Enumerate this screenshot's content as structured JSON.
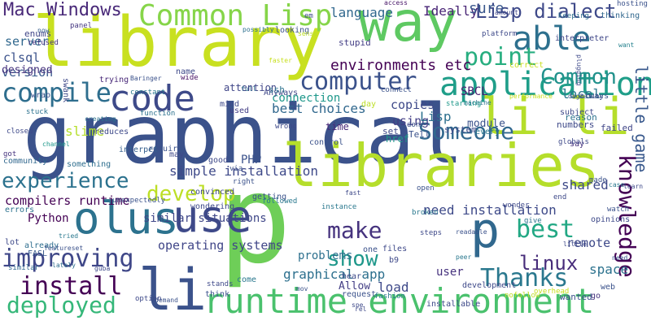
{
  "words": [
    {
      "text": "p",
      "color": "#6ece58"
    },
    {
      "text": "graphical",
      "color": "#3b528b"
    },
    {
      "text": "library",
      "color": "#c8e020"
    },
    {
      "text": "li li",
      "color": "#b5de2b"
    },
    {
      "text": "libraries",
      "color": "#b5de2b"
    },
    {
      "text": "way",
      "color": "#5ec962"
    },
    {
      "text": "olus",
      "color": "#2c728e"
    },
    {
      "text": "use",
      "color": "#3e4989"
    },
    {
      "text": "p",
      "color": "#31688e"
    },
    {
      "text": "runtime environment",
      "color": "#4ac16d"
    },
    {
      "text": "li",
      "color": "#3b528b"
    },
    {
      "text": "Common Lisp",
      "color": "#86d549"
    },
    {
      "text": "code",
      "color": "#3e4a89"
    },
    {
      "text": "application",
      "color": "#1f9e89"
    },
    {
      "text": "able",
      "color": "#2d708e"
    },
    {
      "text": "compile",
      "color": "#2e6e8e"
    },
    {
      "text": "Common",
      "color": "#21918c"
    },
    {
      "text": "point",
      "color": "#28ae80"
    },
    {
      "text": "computer",
      "color": "#3b528b"
    },
    {
      "text": "Someone",
      "color": "#31688e"
    },
    {
      "text": "develop",
      "color": "#bddf26"
    },
    {
      "text": "experience",
      "color": "#2c728e"
    },
    {
      "text": "improving",
      "color": "#3f4788"
    },
    {
      "text": "install",
      "color": "#440154"
    },
    {
      "text": "deployed",
      "color": "#35b779"
    },
    {
      "text": "make",
      "color": "#46337e"
    },
    {
      "text": "best",
      "color": "#22a884"
    },
    {
      "text": "linux",
      "color": "#472c7a"
    },
    {
      "text": "show",
      "color": "#1f988b"
    },
    {
      "text": "Thanks",
      "color": "#2a788e"
    },
    {
      "text": "knowledge",
      "color": "#440154"
    },
    {
      "text": "Lisp dialect",
      "color": "#3e4989"
    },
    {
      "text": "Mac Windows",
      "color": "#482878"
    },
    {
      "text": "environments etc",
      "color": "#440154"
    },
    {
      "text": "language",
      "color": "#31688e"
    },
    {
      "text": "Ideally",
      "color": "#482475"
    },
    {
      "text": "little game",
      "color": "#38588c"
    },
    {
      "text": "simple installation",
      "color": "#3e4989"
    },
    {
      "text": "need installation",
      "color": "#3e4a89"
    },
    {
      "text": "graphical app",
      "color": "#2d708e"
    },
    {
      "text": "operating systems",
      "color": "#404688"
    },
    {
      "text": "similar situations",
      "color": "#3f4788"
    },
    {
      "text": "best choices",
      "color": "#31688e"
    },
    {
      "text": "compilers runtime",
      "color": "#440154"
    },
    {
      "text": "Python",
      "color": "#440154"
    },
    {
      "text": "problems",
      "color": "#2d708e"
    },
    {
      "text": "remote",
      "color": "#3e4989"
    },
    {
      "text": "space",
      "color": "#2c728e"
    },
    {
      "text": "shared",
      "color": "#3e4a89"
    },
    {
      "text": "version",
      "color": "#38588c"
    },
    {
      "text": "server",
      "color": "#31688e"
    },
    {
      "text": "clsql",
      "color": "#3b528b"
    },
    {
      "text": "designed",
      "color": "#46337e"
    },
    {
      "text": "slime",
      "color": "#b5de2b"
    },
    {
      "text": "connection",
      "color": "#1f988b"
    },
    {
      "text": "copies",
      "color": "#3e4989"
    },
    {
      "text": "using",
      "color": "#433e85"
    },
    {
      "text": "SBCL",
      "color": "#481f70"
    },
    {
      "text": "Lisp",
      "color": "#2d708e"
    },
    {
      "text": "sure",
      "color": "#39568c"
    },
    {
      "text": "local",
      "color": "#2a788e"
    },
    {
      "text": "PHP",
      "color": "#3b528b"
    },
    {
      "text": "load",
      "color": "#3e4989"
    },
    {
      "text": "user",
      "color": "#46327e"
    },
    {
      "text": "Allow",
      "color": "#433e85"
    },
    {
      "text": "module",
      "color": "#3b528b"
    },
    {
      "text": "FASL",
      "color": "#38588c"
    },
    {
      "text": "enums",
      "color": "#404688"
    },
    {
      "text": "refused",
      "color": "#46337e"
    },
    {
      "text": "now",
      "color": "#355f8d"
    },
    {
      "text": "panel",
      "color": "#453781"
    },
    {
      "text": "possibly",
      "color": "#2d708e"
    },
    {
      "text": "looking",
      "color": "#3b528b"
    },
    {
      "text": "access",
      "color": "#481668"
    },
    {
      "text": "amount",
      "color": "#404688"
    },
    {
      "text": "platform",
      "color": "#3e4989"
    },
    {
      "text": "Keeping",
      "color": "#2e6e8e"
    },
    {
      "text": "thinking",
      "color": "#31688e"
    },
    {
      "text": "interpreter",
      "color": "#3f4788"
    },
    {
      "text": "hosting",
      "color": "#3b528b"
    },
    {
      "text": "want",
      "color": "#26828e"
    },
    {
      "text": "wrap",
      "color": "#3b528b"
    },
    {
      "text": "trying",
      "color": "#482878"
    },
    {
      "text": "Anyways",
      "color": "#3f4788"
    },
    {
      "text": "faster",
      "color": "#c8e020"
    },
    {
      "text": "stupid",
      "color": "#433e85"
    },
    {
      "text": "wide",
      "color": "#471063"
    },
    {
      "text": "mind",
      "color": "#3e4989"
    },
    {
      "text": "attention",
      "color": "#404688"
    },
    {
      "text": "ssh",
      "color": "#2c728e"
    },
    {
      "text": "used",
      "color": "#433e85"
    },
    {
      "text": "full",
      "color": "#2e6e8e"
    },
    {
      "text": "day",
      "color": "#bddf26"
    },
    {
      "text": "href",
      "color": "#1f988b"
    },
    {
      "text": "Tell",
      "color": "#3b528b"
    },
    {
      "text": "set",
      "color": "#3e4989"
    },
    {
      "text": "system",
      "color": "#3e4a89"
    },
    {
      "text": "every",
      "color": "#2a788e"
    },
    {
      "text": "numbers",
      "color": "#3e4989"
    },
    {
      "text": "failed",
      "color": "#404688"
    },
    {
      "text": "subject",
      "color": "#3e4989"
    },
    {
      "text": "reason",
      "color": "#2c728e"
    },
    {
      "text": "always",
      "color": "#3b528b"
    },
    {
      "text": "say",
      "color": "#46337e"
    },
    {
      "text": "time",
      "color": "#482878"
    },
    {
      "text": "done",
      "color": "#3b528b"
    },
    {
      "text": "connect",
      "color": "#3b528b"
    },
    {
      "text": "control",
      "color": "#3b528b"
    },
    {
      "text": "wrong",
      "color": "#3e4989"
    },
    {
      "text": "function",
      "color": "#2c728e"
    },
    {
      "text": "reduces",
      "color": "#3e4989"
    },
    {
      "text": "require",
      "color": "#3b528b"
    },
    {
      "text": "interpet",
      "color": "#355f8d"
    },
    {
      "text": "may",
      "color": "#3e4989"
    },
    {
      "text": "good",
      "color": "#3e4989"
    },
    {
      "text": "something",
      "color": "#2e6e8e"
    },
    {
      "text": "getting",
      "color": "#3b528b"
    },
    {
      "text": "right",
      "color": "#3b528b"
    },
    {
      "text": "followed",
      "color": "#2a788e"
    },
    {
      "text": "convinced",
      "color": "#3e4989"
    },
    {
      "text": "wondering",
      "color": "#3e4989"
    },
    {
      "text": "already",
      "color": "#2e6e8e"
    },
    {
      "text": "unexpectedly",
      "color": "#3b528b"
    },
    {
      "text": "instance",
      "color": "#2a788e"
    },
    {
      "text": "community",
      "color": "#31688e"
    },
    {
      "text": "stuck",
      "color": "#2c728e"
    },
    {
      "text": "closed",
      "color": "#3e4989"
    },
    {
      "text": "got",
      "color": "#46337e"
    },
    {
      "text": "errors",
      "color": "#2c728e"
    },
    {
      "text": "lot",
      "color": "#3e4989"
    },
    {
      "text": "similar",
      "color": "#31688e"
    },
    {
      "text": "lately",
      "color": "#2e6e8e"
    },
    {
      "text": "stands",
      "color": "#3e4989"
    },
    {
      "text": "think",
      "color": "#3b528b"
    },
    {
      "text": "come",
      "color": "#2a788e"
    },
    {
      "text": "option",
      "color": "#3e4989"
    },
    {
      "text": "demand",
      "color": "#3b528b"
    },
    {
      "text": "files",
      "color": "#3e4989"
    },
    {
      "text": "one",
      "color": "#3b528b"
    },
    {
      "text": "b9",
      "color": "#3e4989"
    },
    {
      "text": "request",
      "color": "#3b528b"
    },
    {
      "text": "fashion",
      "color": "#2a788e"
    },
    {
      "text": "installable",
      "color": "#3e4989"
    },
    {
      "text": "development",
      "color": "#3e4989"
    },
    {
      "text": "wanted",
      "color": "#3b528b"
    },
    {
      "text": "go",
      "color": "#46337e"
    },
    {
      "text": "web",
      "color": "#3b528b"
    },
    {
      "text": "overhead",
      "color": "#c8e020"
    },
    {
      "text": "nofollow",
      "color": "#bddf26"
    },
    {
      "text": "peer",
      "color": "#2a788e"
    },
    {
      "text": "opinions",
      "color": "#3e4989"
    },
    {
      "text": "give",
      "color": "#2c728e"
    },
    {
      "text": "watch",
      "color": "#3b528b"
    },
    {
      "text": "little",
      "color": "#3e4989"
    },
    {
      "text": "need",
      "color": "#3b528b"
    },
    {
      "text": "steps",
      "color": "#3e4989"
    },
    {
      "text": "open",
      "color": "#3b528b"
    },
    {
      "text": "broken",
      "color": "#2a788e"
    },
    {
      "text": "fast",
      "color": "#3e4989"
    },
    {
      "text": "hear",
      "color": "#3e4989"
    },
    {
      "text": "readable",
      "color": "#3b528b"
    },
    {
      "text": "wonder",
      "color": "#3e4989"
    },
    {
      "text": "machine",
      "color": "#2c728e"
    },
    {
      "text": "starting",
      "color": "#1f988b"
    },
    {
      "text": "performance",
      "color": "#c8e020"
    },
    {
      "text": "correct",
      "color": "#c8e020"
    },
    {
      "text": "globals",
      "color": "#3e4989"
    },
    {
      "text": "name",
      "color": "#3e4989"
    },
    {
      "text": "Baringer",
      "color": "#3b528b"
    },
    {
      "text": "constant",
      "color": "#2a788e"
    },
    {
      "text": "creating",
      "color": "#2c728e"
    },
    {
      "text": "channel",
      "color": "#1f988b"
    },
    {
      "text": "em",
      "color": "#3e4989"
    },
    {
      "text": "via",
      "color": "#3b528b"
    },
    {
      "text": "sense",
      "color": "#bddf26"
    },
    {
      "text": "swank",
      "color": "#3e4989"
    },
    {
      "text": "tried",
      "color": "#2a788e"
    },
    {
      "text": "featureset",
      "color": "#3b528b"
    },
    {
      "text": "guba",
      "color": "#3e4989"
    },
    {
      "text": "mov",
      "color": "#3b528b"
    },
    {
      "text": "spe",
      "color": "#3e4989"
    },
    {
      "text": "degration",
      "color": "#3b528b"
    },
    {
      "text": "plugging",
      "color": "#3e4989"
    },
    {
      "text": "made",
      "color": "#3b528b"
    },
    {
      "text": "learn",
      "color": "#3e4989"
    },
    {
      "text": "case",
      "color": "#2a788e"
    },
    {
      "text": "end",
      "color": "#3e4989"
    },
    {
      "text": "rel",
      "color": "#3e4989"
    }
  ]
}
